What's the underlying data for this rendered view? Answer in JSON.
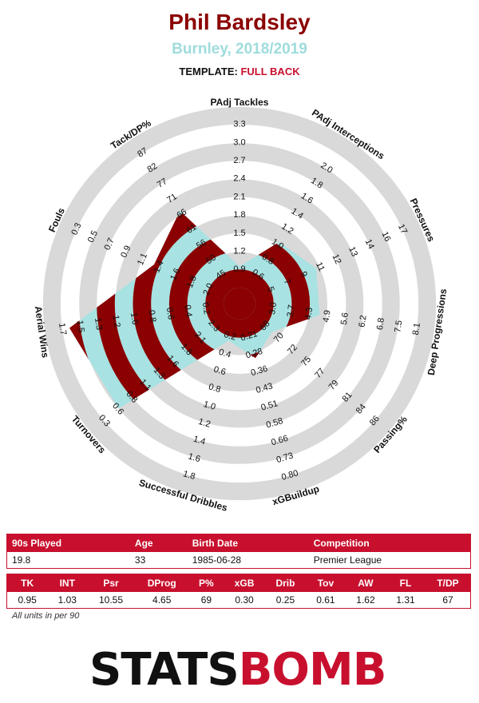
{
  "header": {
    "player": "Phil Bardsley",
    "team_season": "Burnley, 2018/2019",
    "template_label": "TEMPLATE:",
    "template_value": "FULL BACK"
  },
  "colors": {
    "band": "#8b0000",
    "fill": "#a8e2e2",
    "ring": "#d9d9d9",
    "accent": "#c8102e"
  },
  "chart_data": {
    "type": "radar",
    "metrics": [
      {
        "name": "PAdj Tackles",
        "ticks": [
          "0.9",
          "1.2",
          "1.5",
          "1.8",
          "2.1",
          "2.4",
          "2.7",
          "3.0",
          "3.3"
        ],
        "value": 0.95
      },
      {
        "name": "PAdj Interceptions",
        "ticks": [
          "0.6",
          "0.8",
          "1.0",
          "1.2",
          "1.4",
          "1.6",
          "1.8",
          "2.0"
        ],
        "value": 1.03
      },
      {
        "name": "Pressures",
        "ticks": [
          "5",
          "7",
          "9",
          "11",
          "12",
          "13",
          "14",
          "16",
          "17"
        ],
        "value": 10.55
      },
      {
        "name": "Deep Progressions",
        "ticks": [
          "3.0",
          "3.7",
          "4.3",
          "4.9",
          "5.6",
          "6.2",
          "6.8",
          "7.5",
          "8.1"
        ],
        "value": 4.65
      },
      {
        "name": "Passing%",
        "ticks": [
          "68",
          "70",
          "72",
          "75",
          "77",
          "79",
          "81",
          "84",
          "86"
        ],
        "value": 69
      },
      {
        "name": "xGBuildup",
        "ticks": [
          "0.21",
          "0.28",
          "0.36",
          "0.43",
          "0.51",
          "0.58",
          "0.66",
          "0.73",
          "0.80"
        ],
        "value": 0.3
      },
      {
        "name": "Successful Dribbles",
        "ticks": [
          "0.2",
          "0.4",
          "0.6",
          "0.8",
          "1.0",
          "1.2",
          "1.4",
          "1.6",
          "1.8"
        ],
        "value": 0.25
      },
      {
        "name": "Turnovers",
        "ticks": [
          "2.3",
          "2.1",
          "1.8",
          "1.6",
          "1.3",
          "1.1",
          "0.8",
          "0.6",
          "0.3"
        ],
        "value": 0.61
      },
      {
        "name": "Aerial Wins",
        "ticks": [
          "0.2",
          "0.4",
          "0.6",
          "0.8",
          "1.0",
          "1.2",
          "1.3",
          "1.5",
          "1.7"
        ],
        "value": 1.62
      },
      {
        "name": "Fouls",
        "ticks": [
          "2.0",
          "1.8",
          "1.6",
          "1.4",
          "1.1",
          "0.9",
          "0.7",
          "0.5",
          "0.3"
        ],
        "value": 1.31
      },
      {
        "name": "Tack/DP%",
        "ticks": [
          "45",
          "50",
          "56",
          "61",
          "66",
          "71",
          "77",
          "82",
          "87"
        ],
        "value": 67
      }
    ]
  },
  "info_table": {
    "headers": [
      "90s Played",
      "Age",
      "Birth Date",
      "Competition"
    ],
    "values": [
      "19.8",
      "33",
      "1985-06-28",
      "Premier League"
    ]
  },
  "stats_table": {
    "headers": [
      "TK",
      "INT",
      "Psr",
      "DProg",
      "P%",
      "xGB",
      "Drib",
      "Tov",
      "AW",
      "FL",
      "T/DP"
    ],
    "values": [
      "0.95",
      "1.03",
      "10.55",
      "4.65",
      "69",
      "0.30",
      "0.25",
      "0.61",
      "1.62",
      "1.31",
      "67"
    ]
  },
  "footer_note": "All units in per 90",
  "logo": {
    "part1": "STATS",
    "part2": "B",
    "part3": "OMB"
  }
}
